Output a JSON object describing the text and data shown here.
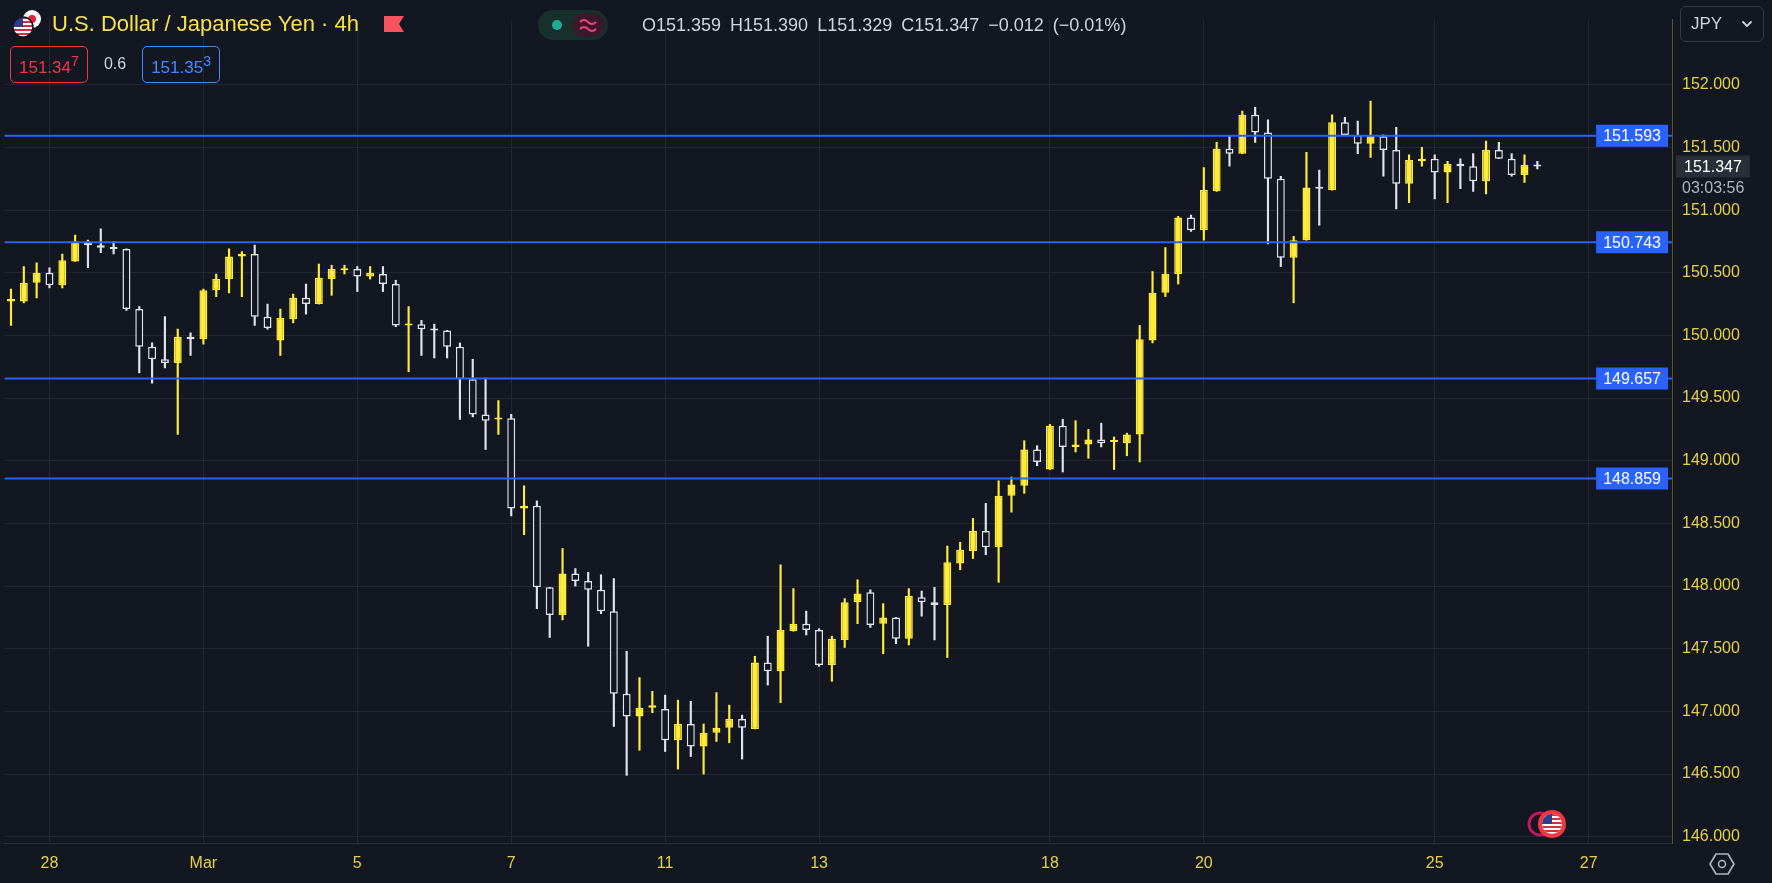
{
  "chart_data": {
    "type": "candlestick",
    "title": "U.S. Dollar / Japanese Yen · 4h",
    "subtitle": "O151.359 H151.390 L151.329 C151.347 −0.012 (−0.01%)",
    "annotations": [
      "151.34$^{7}$",
      "0.6",
      "151.35$^{3}$",
      "JPY",
      "151.347",
      "03:03:56"
    ],
    "categories": [
      null,
      null,
      null,
      "28",
      null,
      null,
      null,
      null,
      null,
      null,
      null,
      null,
      null,
      null,
      null,
      "Mar",
      null,
      null,
      null,
      null,
      null,
      null,
      null,
      null,
      null,
      null,
      null,
      "5",
      null,
      null,
      null,
      null,
      null,
      null,
      null,
      null,
      null,
      null,
      null,
      "7",
      null,
      null,
      null,
      null,
      null,
      null,
      null,
      null,
      null,
      null,
      null,
      "11",
      null,
      null,
      null,
      null,
      null,
      null,
      null,
      null,
      null,
      null,
      null,
      "13",
      null,
      null,
      null,
      null,
      null,
      null,
      null,
      null,
      null,
      null,
      null,
      null,
      null,
      null,
      null,
      null,
      null,
      "18",
      null,
      null,
      null,
      null,
      null,
      null,
      null,
      null,
      null,
      null,
      null,
      "20",
      null,
      null,
      null,
      null,
      null,
      null,
      null,
      null,
      null,
      null,
      null,
      null,
      null,
      null,
      null,
      null,
      null,
      "25",
      null,
      null,
      null,
      null,
      null,
      null,
      null,
      null,
      null,
      null,
      null,
      "27",
      null,
      null,
      null,
      null,
      null,
      null
    ],
    "ohlc": [
      [
        150.27,
        150.37,
        150.08,
        150.29
      ],
      [
        150.27,
        150.55,
        150.26,
        150.42
      ],
      [
        150.42,
        150.58,
        150.3,
        150.5
      ],
      [
        150.5,
        150.54,
        150.38,
        150.4
      ],
      [
        150.4,
        150.65,
        150.38,
        150.6
      ],
      [
        150.59,
        150.8,
        150.59,
        150.75
      ],
      [
        150.74,
        150.76,
        150.54,
        150.72
      ],
      [
        150.72,
        150.85,
        150.66,
        150.7
      ],
      [
        150.7,
        150.75,
        150.65,
        150.69
      ],
      [
        150.69,
        150.69,
        150.2,
        150.21
      ],
      [
        150.21,
        150.23,
        149.7,
        149.91
      ],
      [
        149.91,
        149.94,
        149.62,
        149.81
      ],
      [
        149.81,
        150.15,
        149.74,
        149.78
      ],
      [
        149.78,
        150.05,
        149.21,
        149.99
      ],
      [
        149.99,
        150.02,
        149.84,
        149.97
      ],
      [
        149.97,
        150.37,
        149.93,
        150.36
      ],
      [
        150.36,
        150.49,
        150.31,
        150.45
      ],
      [
        150.45,
        150.69,
        150.34,
        150.63
      ],
      [
        150.63,
        150.67,
        150.31,
        150.65
      ],
      [
        150.65,
        150.72,
        150.08,
        150.15
      ],
      [
        150.15,
        150.25,
        150.05,
        150.06
      ],
      [
        149.96,
        150.21,
        149.84,
        150.14
      ],
      [
        150.13,
        150.33,
        150.1,
        150.3
      ],
      [
        150.3,
        150.41,
        150.17,
        150.25
      ],
      [
        150.25,
        150.57,
        150.25,
        150.46
      ],
      [
        150.45,
        150.56,
        150.32,
        150.53
      ],
      [
        150.52,
        150.56,
        150.49,
        150.53
      ],
      [
        150.53,
        150.55,
        150.35,
        150.47
      ],
      [
        150.47,
        150.55,
        150.45,
        150.5
      ],
      [
        150.49,
        150.55,
        150.35,
        150.41
      ],
      [
        150.41,
        150.44,
        150.07,
        150.08
      ],
      [
        150.08,
        150.23,
        149.71,
        150.09
      ],
      [
        150.09,
        150.12,
        149.84,
        150.05
      ],
      [
        150.05,
        150.09,
        149.82,
        150.04
      ],
      [
        150.04,
        150.04,
        149.82,
        149.91
      ],
      [
        149.91,
        149.94,
        149.33,
        149.65
      ],
      [
        149.65,
        149.81,
        149.35,
        149.37
      ],
      [
        149.37,
        149.66,
        149.09,
        149.32
      ],
      [
        149.33,
        149.48,
        149.21,
        149.34
      ],
      [
        149.34,
        149.37,
        148.56,
        148.62
      ],
      [
        148.62,
        148.8,
        148.41,
        148.64
      ],
      [
        148.64,
        148.68,
        147.82,
        147.99
      ],
      [
        147.99,
        147.99,
        147.59,
        147.77
      ],
      [
        147.77,
        148.3,
        147.73,
        148.1
      ],
      [
        148.1,
        148.14,
        148.0,
        148.04
      ],
      [
        148.04,
        148.11,
        147.52,
        147.97
      ],
      [
        147.97,
        148.09,
        147.78,
        147.8
      ],
      [
        147.8,
        148.06,
        146.88,
        147.14
      ],
      [
        147.14,
        147.48,
        146.49,
        146.96
      ],
      [
        146.96,
        147.27,
        146.69,
        147.03
      ],
      [
        147.03,
        147.16,
        146.99,
        147.05
      ],
      [
        147.02,
        147.13,
        146.68,
        146.77
      ],
      [
        146.77,
        147.09,
        146.54,
        146.9
      ],
      [
        146.9,
        147.08,
        146.64,
        146.72
      ],
      [
        146.72,
        146.9,
        146.5,
        146.83
      ],
      [
        146.83,
        147.15,
        146.76,
        146.87
      ],
      [
        146.87,
        147.05,
        146.75,
        146.94
      ],
      [
        146.94,
        146.97,
        146.62,
        146.87
      ],
      [
        146.86,
        147.44,
        146.86,
        147.39
      ],
      [
        147.39,
        147.6,
        147.21,
        147.32
      ],
      [
        147.32,
        148.17,
        147.07,
        147.65
      ],
      [
        147.64,
        147.98,
        147.64,
        147.7
      ],
      [
        147.7,
        147.8,
        147.61,
        147.65
      ],
      [
        147.65,
        147.66,
        147.36,
        147.37
      ],
      [
        147.37,
        147.6,
        147.24,
        147.58
      ],
      [
        147.57,
        147.9,
        147.51,
        147.87
      ],
      [
        147.87,
        148.05,
        147.7,
        147.94
      ],
      [
        147.95,
        147.97,
        147.67,
        147.69
      ],
      [
        147.7,
        147.86,
        147.46,
        147.75
      ],
      [
        147.75,
        147.75,
        147.54,
        147.58
      ],
      [
        147.58,
        147.98,
        147.53,
        147.92
      ],
      [
        147.91,
        147.96,
        147.76,
        147.87
      ],
      [
        147.87,
        147.99,
        147.57,
        147.85
      ],
      [
        147.85,
        148.32,
        147.43,
        148.19
      ],
      [
        148.18,
        148.35,
        148.13,
        148.29
      ],
      [
        148.28,
        148.54,
        148.22,
        148.44
      ],
      [
        148.44,
        148.66,
        148.25,
        148.31
      ],
      [
        148.31,
        148.84,
        148.03,
        148.72
      ],
      [
        148.72,
        148.87,
        148.59,
        148.81
      ],
      [
        148.8,
        149.16,
        148.74,
        149.09
      ],
      [
        149.09,
        149.12,
        148.96,
        148.99
      ],
      [
        148.93,
        149.29,
        148.93,
        149.28
      ],
      [
        149.28,
        149.33,
        148.91,
        149.11
      ],
      [
        149.11,
        149.32,
        149.07,
        149.13
      ],
      [
        149.13,
        149.25,
        149.02,
        149.17
      ],
      [
        149.17,
        149.3,
        149.11,
        149.14
      ],
      [
        149.15,
        149.19,
        148.93,
        149.16
      ],
      [
        149.14,
        149.22,
        149.04,
        149.21
      ],
      [
        149.21,
        150.08,
        148.99,
        149.97
      ],
      [
        149.96,
        150.51,
        149.94,
        150.34
      ],
      [
        150.34,
        150.7,
        150.31,
        150.49
      ],
      [
        150.49,
        150.95,
        150.41,
        150.94
      ],
      [
        150.94,
        150.96,
        150.83,
        150.84
      ],
      [
        150.84,
        151.34,
        150.76,
        151.16
      ],
      [
        151.15,
        151.54,
        151.15,
        151.49
      ],
      [
        151.49,
        151.59,
        151.35,
        151.45
      ],
      [
        151.45,
        151.79,
        151.45,
        151.76
      ],
      [
        151.76,
        151.82,
        151.54,
        151.62
      ],
      [
        151.62,
        151.72,
        150.73,
        151.25
      ],
      [
        151.25,
        151.27,
        150.55,
        150.62
      ],
      [
        150.62,
        150.79,
        150.26,
        150.76
      ],
      [
        150.76,
        151.46,
        150.76,
        151.18
      ],
      [
        151.18,
        151.32,
        150.88,
        151.17
      ],
      [
        151.16,
        151.76,
        151.16,
        151.7
      ],
      [
        151.7,
        151.74,
        151.6,
        151.6
      ],
      [
        151.6,
        151.71,
        151.45,
        151.53
      ],
      [
        151.53,
        151.87,
        151.42,
        151.59
      ],
      [
        151.59,
        151.6,
        151.27,
        151.48
      ],
      [
        151.48,
        151.66,
        151.01,
        151.21
      ],
      [
        151.21,
        151.44,
        151.06,
        151.4
      ],
      [
        151.39,
        151.5,
        151.35,
        151.41
      ],
      [
        151.41,
        151.44,
        151.09,
        151.3
      ],
      [
        151.3,
        151.39,
        151.06,
        151.37
      ],
      [
        151.37,
        151.41,
        151.17,
        151.35
      ],
      [
        151.35,
        151.45,
        151.15,
        151.23
      ],
      [
        151.23,
        151.55,
        151.13,
        151.48
      ],
      [
        151.48,
        151.54,
        151.41,
        151.41
      ],
      [
        151.41,
        151.45,
        151.27,
        151.28
      ],
      [
        151.28,
        151.44,
        151.22,
        151.36
      ],
      [
        151.359,
        151.39,
        151.329,
        151.347
      ],
      null,
      null,
      null,
      null,
      null,
      null,
      null,
      null,
      null,
      null
    ],
    "colors": [
      "#ffeb3b",
      "#ffeb3b",
      "#ffeb3b",
      "#e0e3eb",
      "#ffeb3b",
      "#ffeb3b",
      "#e0e3eb",
      "#e0e3eb",
      "#e0e3eb",
      "#e0e3eb",
      "#e0e3eb",
      "#e0e3eb",
      "#e0e3eb",
      "#ffeb3b",
      "#e0e3eb",
      "#ffeb3b",
      "#ffeb3b",
      "#ffeb3b",
      "#ffeb3b",
      "#e0e3eb",
      "#e0e3eb",
      "#ffeb3b",
      "#ffeb3b",
      "#e0e3eb",
      "#ffeb3b",
      "#ffeb3b",
      "#ffeb3b",
      "#e0e3eb",
      "#ffeb3b",
      "#e0e3eb",
      "#e0e3eb",
      "#ffeb3b",
      "#e0e3eb",
      "#e0e3eb",
      "#e0e3eb",
      "#e0e3eb",
      "#e0e3eb",
      "#e0e3eb",
      "#ffeb3b",
      "#e0e3eb",
      "#ffeb3b",
      "#e0e3eb",
      "#e0e3eb",
      "#ffeb3b",
      "#e0e3eb",
      "#e0e3eb",
      "#e0e3eb",
      "#e0e3eb",
      "#e0e3eb",
      "#ffeb3b",
      "#ffeb3b",
      "#e0e3eb",
      "#ffeb3b",
      "#e0e3eb",
      "#ffeb3b",
      "#ffeb3b",
      "#ffeb3b",
      "#e0e3eb",
      "#ffeb3b",
      "#e0e3eb",
      "#ffeb3b",
      "#ffeb3b",
      "#e0e3eb",
      "#e0e3eb",
      "#ffeb3b",
      "#ffeb3b",
      "#ffeb3b",
      "#e0e3eb",
      "#ffeb3b",
      "#e0e3eb",
      "#ffeb3b",
      "#e0e3eb",
      "#e0e3eb",
      "#ffeb3b",
      "#ffeb3b",
      "#ffeb3b",
      "#e0e3eb",
      "#ffeb3b",
      "#ffeb3b",
      "#ffeb3b",
      "#e0e3eb",
      "#ffeb3b",
      "#e0e3eb",
      "#ffeb3b",
      "#ffeb3b",
      "#e0e3eb",
      "#ffeb3b",
      "#ffeb3b",
      "#ffeb3b",
      "#ffeb3b",
      "#ffeb3b",
      "#ffeb3b",
      "#e0e3eb",
      "#ffeb3b",
      "#ffeb3b",
      "#e0e3eb",
      "#ffeb3b",
      "#e0e3eb",
      "#e0e3eb",
      "#e0e3eb",
      "#ffeb3b",
      "#ffeb3b",
      "#e0e3eb",
      "#ffeb3b",
      "#e0e3eb",
      "#e0e3eb",
      "#ffeb3b",
      "#e0e3eb",
      "#e0e3eb",
      "#ffeb3b",
      "#ffeb3b",
      "#e0e3eb",
      "#ffeb3b",
      "#e0e3eb",
      "#e0e3eb",
      "#ffeb3b",
      "#e0e3eb",
      "#e0e3eb",
      "#ffeb3b",
      "#e0e3eb",
      null,
      null,
      null,
      null,
      null,
      null,
      null,
      null,
      null,
      null
    ],
    "ylim": [
      145.95,
      152.52
    ],
    "yticks": [
      {
        "value": 146,
        "label": "146.000"
      },
      {
        "value": 146.5,
        "label": "146.500"
      },
      {
        "value": 147,
        "label": "147.000"
      },
      {
        "value": 147.5,
        "label": "147.500"
      },
      {
        "value": 148,
        "label": "148.000"
      },
      {
        "value": 148.5,
        "label": "148.500"
      },
      {
        "value": 149,
        "label": "149.000"
      },
      {
        "value": 149.5,
        "label": "149.500"
      },
      {
        "value": 150,
        "label": "150.000"
      },
      {
        "value": 150.5,
        "label": "150.500"
      },
      {
        "value": 151,
        "label": "151.000"
      },
      {
        "value": 151.5,
        "label": "151.500"
      },
      {
        "value": 152,
        "label": "152.000"
      }
    ],
    "grid": true,
    "ref_lines": [
      {
        "axis": "y",
        "value": 151.593,
        "label": "151.593",
        "color": "#2962ff"
      },
      {
        "axis": "y",
        "value": 150.743,
        "label": "150.743",
        "color": "#2962ff"
      },
      {
        "axis": "y",
        "value": 149.657,
        "label": "149.657",
        "color": "#2962ff"
      },
      {
        "axis": "y",
        "value": 148.859,
        "label": "148.859",
        "color": "#2962ff"
      }
    ]
  }
}
